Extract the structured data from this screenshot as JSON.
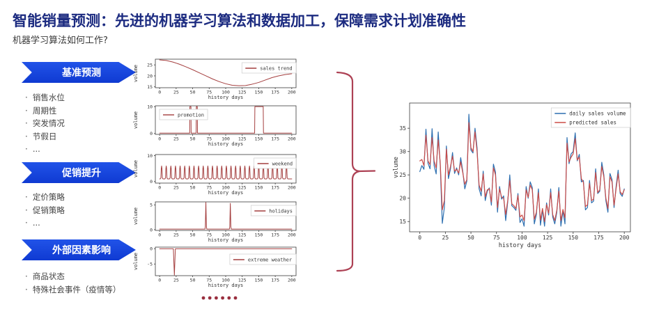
{
  "page": {
    "title": "智能销量预测：先进的机器学习算法和数据加工，保障需求计划准确性",
    "subtitle": "机器学习算法如何工作?"
  },
  "sidebar": {
    "sections": [
      {
        "label": "基准预测",
        "items": [
          "销售水位",
          "周期性",
          "突发情况",
          "节假日",
          "..."
        ]
      },
      {
        "label": "促销提升",
        "items": [
          "定价策略",
          "促销策略",
          "..."
        ]
      },
      {
        "label": "外部因素影响",
        "items": [
          "商品状态",
          "特殊社会事件（疫情等）"
        ]
      }
    ]
  },
  "ellipsis": {
    "count": 6,
    "color": "#992e3e"
  },
  "colors": {
    "title": "#1c2b80",
    "banner_blue": "#1647dd",
    "small_line_red": "#a43e3e",
    "big_line_blue": "#2d6fb0",
    "big_line_red": "#cc4b47",
    "brace": "#ad4154"
  },
  "chart_data": [
    {
      "id": "sales-trend",
      "type": "line",
      "xlabel": "history days",
      "ylabel": "volume",
      "xlim": [
        -6.5,
        206.5
      ],
      "ylim": [
        14.6,
        27.6
      ],
      "xticks": [
        0,
        25,
        50,
        75,
        100,
        125,
        150,
        175,
        200
      ],
      "yticks": [
        15,
        20,
        25
      ],
      "legend": {
        "align": "right",
        "dy": 5
      },
      "series": [
        {
          "name": "sales trend",
          "color": "#a43e3e",
          "points": [
            [
              0,
              27.3
            ],
            [
              10,
              27.0
            ],
            [
              20,
              26.3
            ],
            [
              30,
              25.3
            ],
            [
              40,
              24.1
            ],
            [
              50,
              22.8
            ],
            [
              60,
              21.4
            ],
            [
              70,
              20.0
            ],
            [
              80,
              18.6
            ],
            [
              90,
              17.4
            ],
            [
              100,
              16.4
            ],
            [
              110,
              15.7
            ],
            [
              120,
              15.5
            ],
            [
              130,
              15.6
            ],
            [
              140,
              16.2
            ],
            [
              150,
              17.0
            ],
            [
              160,
              18.1
            ],
            [
              170,
              19.2
            ],
            [
              180,
              20.0
            ],
            [
              190,
              20.6
            ],
            [
              200,
              21.0
            ]
          ]
        }
      ]
    },
    {
      "id": "promotion",
      "type": "line",
      "xlabel": "history days",
      "ylabel": "volume",
      "xlim": [
        -6.5,
        206.5
      ],
      "ylim": [
        -0.3,
        10.3
      ],
      "xticks": [
        0,
        25,
        50,
        75,
        100,
        125,
        150,
        175,
        200
      ],
      "yticks": [
        0,
        10
      ],
      "legend": {
        "align": "left",
        "dy": 5
      },
      "series": [
        {
          "name": "promotion",
          "color": "#a43e3e",
          "points": [
            [
              0,
              0.15
            ],
            [
              45.5,
              0.15
            ],
            [
              45.8,
              10
            ],
            [
              47.4,
              10
            ],
            [
              47.7,
              0.15
            ],
            [
              55.3,
              0.15
            ],
            [
              55.6,
              10
            ],
            [
              57.0,
              10
            ],
            [
              57.3,
              0.15
            ],
            [
              143.8,
              0.15
            ],
            [
              144.2,
              10
            ],
            [
              156.8,
              10
            ],
            [
              157.2,
              0.15
            ],
            [
              200,
              0.15
            ]
          ]
        }
      ]
    },
    {
      "id": "weekend",
      "type": "line",
      "xlabel": "history days",
      "ylabel": "volume",
      "xlim": [
        -6.5,
        206.5
      ],
      "ylim": [
        -0.6,
        10.4
      ],
      "xticks": [
        0,
        25,
        50,
        75,
        100,
        125,
        150,
        175,
        200
      ],
      "yticks": [
        0,
        10
      ],
      "legend": {
        "align": "right",
        "dy": 5
      },
      "series": [
        {
          "name": "weekend",
          "color": "#a43e3e",
          "pulse": {
            "start": 3,
            "period": 7,
            "count": 28,
            "base": 1.0,
            "peak": 6.0,
            "span": 200
          }
        }
      ]
    },
    {
      "id": "holidays",
      "type": "line",
      "xlabel": "history days",
      "ylabel": "volume",
      "xlim": [
        -6.5,
        206.5
      ],
      "ylim": [
        -0.15,
        5.6
      ],
      "xticks": [
        0,
        25,
        50,
        75,
        100,
        125,
        150,
        175,
        200
      ],
      "yticks": [
        0,
        5
      ],
      "legend": {
        "align": "right",
        "dy": 5
      },
      "series": [
        {
          "name": "holidays",
          "color": "#a43e3e",
          "points": [
            [
              0,
              0.12
            ],
            [
              68.6,
              0.12
            ],
            [
              69.2,
              0.6
            ],
            [
              70,
              5.5
            ],
            [
              70.8,
              0.6
            ],
            [
              71.4,
              0.12
            ],
            [
              105.6,
              0.12
            ],
            [
              106.2,
              0.6
            ],
            [
              107,
              5.3
            ],
            [
              107.8,
              0.6
            ],
            [
              108.4,
              0.12
            ],
            [
              200,
              0.12
            ]
          ]
        }
      ]
    },
    {
      "id": "extreme-weather",
      "type": "line",
      "xlabel": "history days",
      "ylabel": "volume",
      "xlim": [
        -6.5,
        206.5
      ],
      "ylim": [
        -8.8,
        0.5
      ],
      "xticks": [
        0,
        25,
        50,
        75,
        100,
        125,
        150,
        175,
        200
      ],
      "yticks": [
        0,
        -5
      ],
      "legend": {
        "align": "right",
        "dy": 10
      },
      "series": [
        {
          "name": "extreme weather",
          "color": "#a43e3e",
          "points": [
            [
              0,
              -0.05
            ],
            [
              20.8,
              -0.05
            ],
            [
              22.3,
              -8.6
            ],
            [
              23.8,
              -0.05
            ],
            [
              200,
              -0.05
            ]
          ]
        }
      ]
    },
    {
      "id": "prediction-fit",
      "type": "line",
      "xlabel": "history days",
      "ylabel": "volume",
      "xlim": [
        -10,
        206
      ],
      "ylim": [
        12.8,
        40.4
      ],
      "xticks": [
        0,
        25,
        50,
        75,
        100,
        125,
        150,
        175,
        200
      ],
      "yticks": [
        15,
        20,
        25,
        30,
        35
      ],
      "legend": {
        "align": "right",
        "dy": 7,
        "box": true
      },
      "series": [
        {
          "name": "daily sales volume",
          "color": "#2d6fb0",
          "x_start": 0,
          "x_step": 2,
          "values": [
            25.7,
            27.0,
            26.2,
            34.8,
            27.5,
            26.3,
            34.9,
            27.0,
            25.2,
            34.2,
            27.0,
            14.6,
            18.0,
            31.2,
            24.2,
            26.3,
            29.8,
            25.3,
            26.5,
            25.0,
            28.7,
            25.8,
            22.0,
            23.7,
            38.0,
            30.3,
            29.7,
            35.0,
            30.8,
            22.0,
            20.5,
            25.8,
            19.5,
            21.5,
            22.2,
            18.5,
            27.3,
            25.6,
            17.0,
            22.5,
            19.8,
            20.5,
            15.2,
            19.2,
            25.0,
            18.4,
            18.0,
            17.4,
            21.0,
            14.8,
            15.6,
            14.0,
            22.5,
            20.0,
            23.5,
            22.3,
            14.5,
            16.5,
            22.0,
            14.2,
            17.5,
            14.0,
            19.0,
            16.4,
            22.0,
            16.0,
            14.5,
            17.0,
            22.3,
            14.0,
            17.3,
            14.5,
            33.0,
            27.4,
            29.5,
            30.0,
            34.0,
            28.0,
            29.4,
            23.5,
            23.8,
            17.5,
            18.0,
            23.8,
            19.0,
            19.4,
            26.3,
            21.0,
            21.5,
            27.7,
            25.0,
            19.5,
            17.0,
            25.3,
            24.0,
            18.0,
            22.5,
            26.0,
            21.0,
            20.4,
            22.0
          ]
        },
        {
          "name": "predicted sales",
          "color": "#cc4b47",
          "x_start": 0,
          "x_step": 2,
          "values": [
            28.0,
            28.3,
            27.0,
            33.5,
            28.0,
            27.2,
            33.0,
            28.0,
            26.5,
            32.5,
            27.5,
            17.5,
            19.5,
            30.5,
            25.0,
            26.8,
            29.0,
            25.8,
            26.2,
            25.4,
            27.8,
            25.5,
            23.0,
            24.0,
            36.2,
            30.8,
            30.0,
            34.2,
            30.0,
            22.8,
            21.5,
            25.2,
            20.3,
            21.8,
            22.0,
            19.2,
            26.5,
            25.0,
            18.0,
            22.0,
            20.2,
            20.0,
            16.5,
            19.5,
            23.8,
            18.8,
            18.4,
            17.8,
            20.6,
            16.0,
            16.4,
            15.2,
            21.8,
            20.2,
            22.8,
            21.8,
            15.5,
            17.0,
            21.2,
            15.3,
            17.8,
            15.0,
            18.6,
            16.8,
            21.2,
            16.5,
            15.2,
            17.4,
            21.5,
            15.2,
            17.6,
            15.8,
            31.8,
            27.8,
            28.8,
            29.5,
            32.8,
            28.2,
            28.8,
            24.2,
            23.4,
            18.2,
            18.6,
            23.2,
            19.5,
            19.8,
            25.5,
            21.2,
            21.8,
            26.8,
            24.6,
            20.0,
            17.8,
            24.6,
            23.5,
            18.5,
            22.0,
            25.2,
            21.4,
            20.8,
            21.8
          ]
        }
      ]
    }
  ]
}
